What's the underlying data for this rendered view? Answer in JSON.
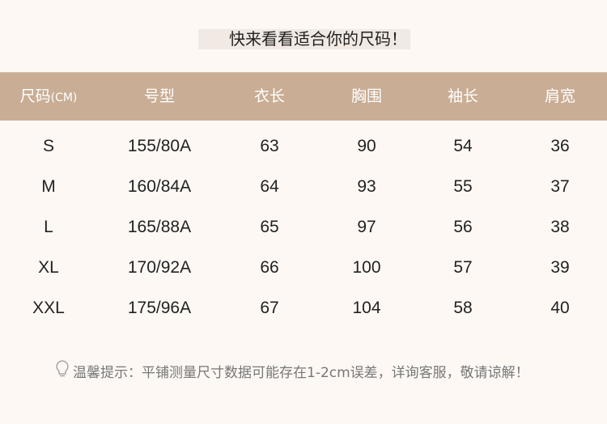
{
  "title": "快来看看适合你的尺码！",
  "table": {
    "headers": [
      "尺码",
      "号型",
      "衣长",
      "胸围",
      "袖长",
      "肩宽"
    ],
    "unit": "(CM)",
    "rows": [
      [
        "S",
        "155/80A",
        "63",
        "90",
        "54",
        "36"
      ],
      [
        "M",
        "160/84A",
        "64",
        "93",
        "55",
        "37"
      ],
      [
        "L",
        "165/88A",
        "65",
        "97",
        "56",
        "38"
      ],
      [
        "XL",
        "170/92A",
        "66",
        "100",
        "57",
        "39"
      ],
      [
        "XXL",
        "175/96A",
        "67",
        "104",
        "58",
        "40"
      ]
    ]
  },
  "tip": {
    "icon": "lightbulb-icon",
    "text": "温馨提示：平铺测量尺寸数据可能存在1-2cm误差，详询客服，敬请谅解！"
  },
  "colors": {
    "header_bg": "#c9ad94",
    "background": "#fdf8f4",
    "title_bg": "#f1e9e3"
  }
}
